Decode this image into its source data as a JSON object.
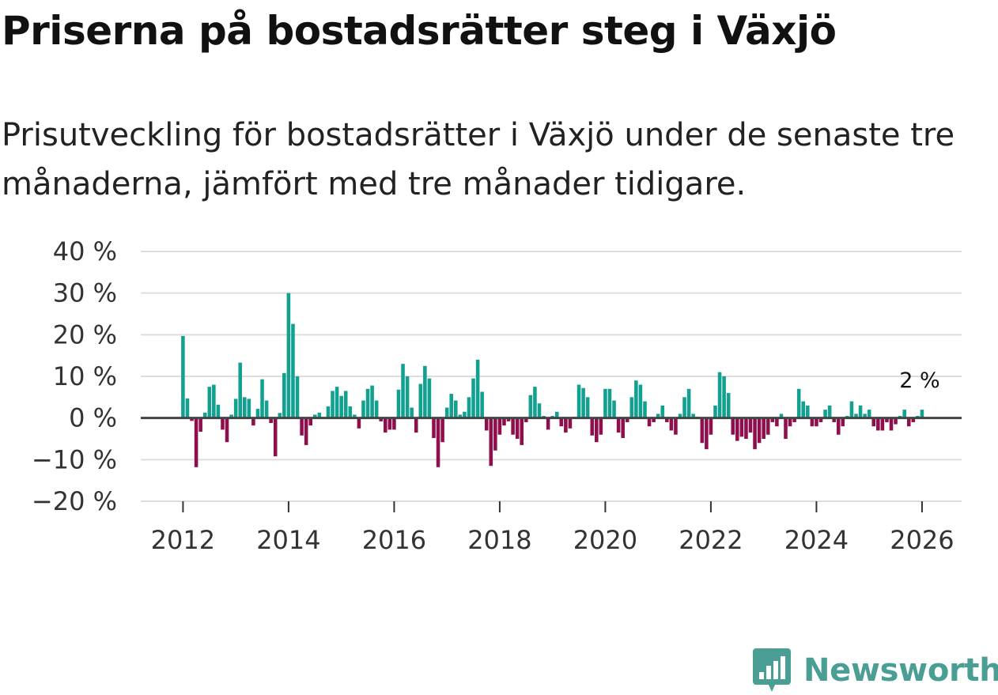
{
  "title": "Priserna på bostadsrätter steg i Växjö",
  "subtitle": "Prisutveckling för bostadsrätter i Växjö under de senaste tre månaderna, jämfört med tre månader tidigare.",
  "brand": {
    "name": "Newsworthy",
    "icon": "newsworthy-logo-icon"
  },
  "colors": {
    "positive": "#12a090",
    "negative": "#8e0f4c",
    "grid": "#dddddd",
    "zero": "#444444",
    "brand": "#4a9e93"
  },
  "chart_data": {
    "type": "bar",
    "title": "Priserna på bostadsrätter steg i Växjö",
    "xlabel": "",
    "ylabel": "",
    "ylim": [
      -20,
      40
    ],
    "yticks": [
      -20,
      -10,
      0,
      10,
      20,
      30,
      40
    ],
    "ytick_labels": [
      "−20 %",
      "−10 %",
      "0 %",
      "10 %",
      "20 %",
      "30 %",
      "40 %"
    ],
    "xlim": [
      2011.2,
      2026.75
    ],
    "xticks": [
      2012,
      2014,
      2016,
      2018,
      2020,
      2022,
      2024,
      2026
    ],
    "xtick_labels": [
      "2012",
      "2014",
      "2016",
      "2018",
      "2020",
      "2022",
      "2024",
      "2026"
    ],
    "start": [
      2012,
      1
    ],
    "values": [
      19.7,
      4.7,
      -0.7,
      -11.8,
      -3.3,
      1.3,
      7.5,
      8.0,
      3.2,
      -2.8,
      -5.8,
      0.8,
      4.6,
      13.3,
      5.0,
      4.6,
      -1.8,
      2.2,
      9.3,
      4.2,
      -1.2,
      -9.2,
      1.2,
      10.8,
      30.0,
      22.6,
      10.0,
      -4.2,
      -6.5,
      -1.8,
      0.8,
      1.3,
      0.0,
      2.8,
      6.5,
      7.5,
      5.3,
      6.5,
      2.8,
      0.8,
      -2.5,
      4.2,
      7.0,
      7.8,
      4.2,
      -0.8,
      -3.5,
      -2.8,
      -2.8,
      6.8,
      13.0,
      10.0,
      2.5,
      -3.5,
      8.2,
      12.5,
      9.5,
      -4.8,
      -11.8,
      -5.8,
      2.5,
      5.8,
      4.2,
      0.8,
      1.5,
      5.0,
      9.5,
      14.0,
      6.3,
      -3.0,
      -11.5,
      -7.8,
      -4.0,
      -1.8,
      -0.8,
      -4.0,
      -5.0,
      -6.5,
      -1.0,
      5.5,
      7.5,
      3.5,
      0.5,
      -2.8,
      0.5,
      1.5,
      -2.0,
      -3.5,
      -2.5,
      0.3,
      8.0,
      7.2,
      5.0,
      -4.2,
      -5.8,
      -4.0,
      7.0,
      7.0,
      4.2,
      -3.5,
      -4.8,
      -1.0,
      5.0,
      9.0,
      8.0,
      4.0,
      -2.0,
      -1.0,
      1.0,
      3.0,
      -1.0,
      -3.0,
      -4.0,
      1.0,
      5.0,
      7.0,
      1.0,
      0.3,
      -6.0,
      -7.5,
      -4.0,
      3.0,
      11.0,
      10.0,
      6.0,
      -4.0,
      -5.5,
      -4.5,
      -5.0,
      -3.5,
      -7.5,
      -6.0,
      -5.0,
      -4.0,
      -1.0,
      -2.0,
      1.0,
      -5.0,
      -2.0,
      -1.0,
      7.0,
      4.0,
      3.0,
      -2.0,
      -2.0,
      -1.0,
      2.0,
      3.0,
      -1.0,
      -4.0,
      -2.0,
      0.5,
      4.0,
      1.0,
      3.0,
      1.0,
      2.0,
      -2.0,
      -3.0,
      -3.0,
      -1.0,
      -3.0,
      -1.5,
      0.5,
      2.0,
      -2.0,
      -1.0,
      0.5,
      2.0
    ],
    "last_value_label": "2 %"
  }
}
